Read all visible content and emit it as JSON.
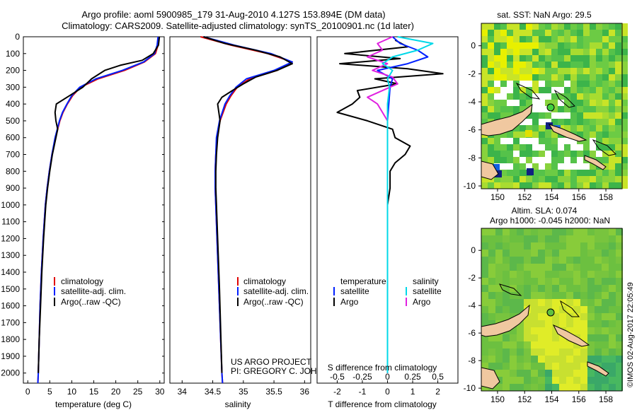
{
  "header": {
    "title_line1": "Argo profile: aoml 5900985_179 31-Aug-2010 4.127S 153.894E (DM data)",
    "title_line2": "Climatology: CARS2009. Satellite-adjusted climatology: synTS_20100901.nc (1d later)"
  },
  "depth_axis": {
    "ticks": [
      0,
      100,
      200,
      300,
      400,
      500,
      600,
      700,
      800,
      900,
      1000,
      1100,
      1200,
      1300,
      1400,
      1500,
      1600,
      1700,
      1800,
      1900,
      2000
    ],
    "range": [
      0,
      2060
    ]
  },
  "colors": {
    "climatology": "#e00000",
    "satellite": "#0020ff",
    "argo": "#000000",
    "salinity_satellite": "#00d8e8",
    "salinity_argo": "#e020e0",
    "land": "#f0c8a0",
    "map_high": "#f0f000",
    "map_mid": "#30c030",
    "map_low": "#0050ff"
  },
  "chart_data": [
    {
      "type": "line",
      "panel": "temperature",
      "xlabel": "temperature (deg C)",
      "ylabel": "depth",
      "xlim": [
        -1,
        31
      ],
      "ylim": [
        2060,
        0
      ],
      "xticks": [
        0,
        5,
        10,
        15,
        20,
        25,
        30
      ],
      "legend": [
        "climatology",
        "satellite-adj. clim.",
        "Argo(..raw -QC)"
      ],
      "series": [
        {
          "name": "climatology",
          "depth": [
            0,
            50,
            100,
            150,
            200,
            250,
            300,
            350,
            400,
            450,
            500,
            600,
            700,
            800,
            900,
            1000,
            1200,
            1400,
            1600,
            1800,
            2000,
            2060
          ],
          "values": [
            29.8,
            29.6,
            29.0,
            26.5,
            22.0,
            16.0,
            12.0,
            10.2,
            9.0,
            8.0,
            7.3,
            6.3,
            5.5,
            4.9,
            4.4,
            4.0,
            3.5,
            3.1,
            2.8,
            2.6,
            2.4,
            2.3
          ]
        },
        {
          "name": "satellite-adj. clim.",
          "depth": [
            0,
            50,
            100,
            150,
            200,
            250,
            300,
            350,
            400,
            450,
            500,
            600,
            700,
            800,
            900,
            1000,
            1200,
            1400,
            1600,
            1800,
            2000,
            2060
          ],
          "values": [
            29.6,
            29.4,
            28.8,
            26.3,
            21.5,
            15.5,
            11.8,
            10.0,
            8.9,
            7.9,
            7.2,
            6.2,
            5.5,
            4.9,
            4.4,
            4.0,
            3.5,
            3.1,
            2.8,
            2.6,
            2.4,
            2.3
          ]
        },
        {
          "name": "Argo(..raw -QC)",
          "depth": [
            0,
            50,
            100,
            140,
            170,
            200,
            250,
            300,
            350,
            400,
            450,
            500,
            550,
            600,
            700,
            800,
            900,
            1000,
            1200,
            1400,
            1600,
            1800,
            2000
          ],
          "values": [
            29.9,
            29.7,
            28.5,
            26.0,
            21.0,
            17.5,
            14.5,
            12.5,
            9.5,
            6.5,
            6.2,
            6.4,
            6.8,
            6.4,
            5.6,
            5.0,
            4.5,
            4.1,
            3.6,
            3.2,
            2.9,
            2.6,
            2.4
          ]
        }
      ]
    },
    {
      "type": "line",
      "panel": "salinity",
      "xlabel": "salinity",
      "ylabel": "depth",
      "xlim": [
        33.8,
        36.1
      ],
      "ylim": [
        2060,
        0
      ],
      "xticks": [
        34,
        34.5,
        35,
        35.5,
        36
      ],
      "xticklabels": [
        "34",
        "34.5",
        "35",
        "35.5",
        "36"
      ],
      "legend": [
        "climatology",
        "satellite-adj. clim.",
        "Argo(..raw -QC)"
      ],
      "annotation": [
        "US ARGO PROJECT",
        "PI: GREGORY C. JOHNSON"
      ],
      "series": [
        {
          "name": "climatology",
          "depth": [
            0,
            50,
            100,
            150,
            200,
            250,
            300,
            350,
            400,
            500,
            600,
            700,
            800,
            900,
            1000,
            1200,
            1500,
            2000,
            2060
          ],
          "values": [
            34.3,
            34.8,
            35.4,
            35.8,
            35.55,
            35.1,
            34.9,
            34.8,
            34.72,
            34.62,
            34.57,
            34.55,
            34.54,
            34.54,
            34.55,
            34.57,
            34.6,
            34.65,
            34.66
          ]
        },
        {
          "name": "satellite-adj. clim.",
          "depth": [
            0,
            50,
            100,
            150,
            200,
            250,
            300,
            350,
            400,
            500,
            600,
            700,
            800,
            900,
            1000,
            1200,
            1500,
            2000,
            2060
          ],
          "values": [
            34.35,
            34.85,
            35.45,
            35.8,
            35.5,
            35.05,
            34.88,
            34.78,
            34.7,
            34.61,
            34.56,
            34.55,
            34.54,
            34.54,
            34.55,
            34.57,
            34.6,
            34.65,
            34.66
          ]
        },
        {
          "name": "Argo(..raw -QC)",
          "depth": [
            0,
            40,
            80,
            120,
            160,
            200,
            240,
            280,
            320,
            360,
            400,
            450,
            500,
            600,
            700,
            800,
            900,
            1000,
            1200,
            1500,
            2000
          ],
          "values": [
            34.35,
            34.7,
            35.2,
            35.6,
            35.8,
            35.55,
            35.2,
            35.0,
            34.82,
            34.65,
            34.58,
            34.6,
            34.62,
            34.58,
            34.56,
            34.55,
            34.55,
            34.56,
            34.58,
            34.61,
            34.65
          ]
        }
      ]
    },
    {
      "type": "line",
      "panel": "difference",
      "xlabel": "T difference from climatology",
      "x2label": "S difference from climatology",
      "ylabel": "depth",
      "xlim": [
        -2.8,
        2.8
      ],
      "ylim": [
        2060,
        0
      ],
      "xticks": [
        -2,
        -1,
        0,
        1,
        2
      ],
      "x2ticks": [
        -0.5,
        -0.25,
        0,
        0.25,
        0.5
      ],
      "x2ticklabels": [
        "-0.5",
        "-0.25",
        "0",
        "0.25",
        "0.5"
      ],
      "legend_temperature_title": "temperature",
      "legend_salinity_title": "salinity",
      "legend_temperature": [
        "satellite",
        "Argo"
      ],
      "legend_salinity": [
        "satellite",
        "Argo"
      ],
      "series": [
        {
          "name": "T satellite",
          "depth": [
            0,
            40,
            80,
            120,
            160,
            200,
            250,
            300,
            400,
            500,
            700,
            1000,
            1500,
            2000
          ],
          "values": [
            0.2,
            0.5,
            1.2,
            1.6,
            0.8,
            -0.4,
            0.2,
            0.1,
            0.05,
            0.0,
            0.0,
            0.0,
            0.0,
            0.0
          ]
        },
        {
          "name": "T Argo",
          "depth": [
            20,
            60,
            100,
            130,
            160,
            190,
            220,
            250,
            280,
            320,
            360,
            400,
            450,
            500,
            550,
            600,
            650,
            700,
            750,
            800,
            850,
            900,
            1000,
            1200,
            1500,
            2000
          ],
          "values": [
            0.3,
            0.8,
            -1.7,
            0.5,
            -1.9,
            0.8,
            2.2,
            -0.5,
            0.4,
            -1.2,
            -1.1,
            -1.4,
            -2.0,
            -0.8,
            0.2,
            0.3,
            0.9,
            0.7,
            0.3,
            0.1,
            0.1,
            0.1,
            0.0,
            0.0,
            0.0,
            0.0
          ]
        },
        {
          "name": "S satellite",
          "depth": [
            0,
            40,
            80,
            120,
            160,
            200,
            250,
            300,
            400,
            500,
            700,
            1000,
            1500,
            2000
          ],
          "values": [
            0.1,
            0.45,
            0.3,
            0.05,
            -0.05,
            0.05,
            0.0,
            0.02,
            0.0,
            0.0,
            0.0,
            0.0,
            0.0,
            0.0
          ]
        },
        {
          "name": "S Argo",
          "depth": [
            0,
            40,
            80,
            120,
            160,
            200,
            240,
            280,
            320,
            360,
            400,
            450,
            500,
            600,
            800,
            1000,
            1500,
            2000
          ],
          "values": [
            0.05,
            -0.1,
            -0.05,
            -0.2,
            0.0,
            -0.15,
            0.05,
            0.1,
            -0.05,
            -0.2,
            -0.1,
            -0.05,
            0.0,
            0.0,
            0.0,
            0.0,
            0.0,
            0.0
          ]
        }
      ]
    },
    {
      "type": "heatmap",
      "panel": "sst-map",
      "title": "sat. SST: NaN Argo: 29.5",
      "xticks": [
        150,
        152,
        154,
        156,
        158
      ],
      "yticks": [
        0,
        -2,
        -4,
        -6,
        -8,
        -10
      ],
      "xlim": [
        148.8,
        159.2
      ],
      "ylim": [
        -10.2,
        1.6
      ]
    },
    {
      "type": "heatmap",
      "panel": "sla-map",
      "title_line1": "Altim. SLA: 0.074",
      "title_line2": "Argo h1000: -0.045 h2000: NaN",
      "xticks": [
        150,
        152,
        154,
        156,
        158
      ],
      "yticks": [
        0,
        -2,
        -4,
        -6,
        -8,
        -10
      ],
      "xlim": [
        148.8,
        159.2
      ],
      "ylim": [
        -10.2,
        1.6
      ]
    }
  ],
  "footer": {
    "credit": "©IMOS 02-Aug-2017 22:05:49"
  }
}
